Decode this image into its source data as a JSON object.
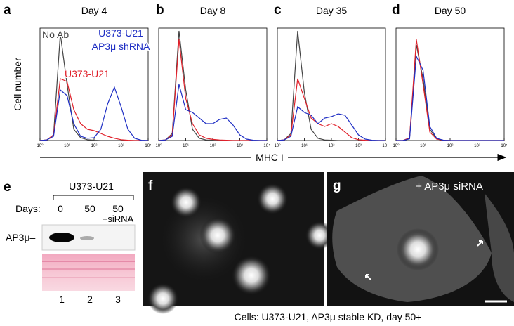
{
  "chart_data": [
    {
      "type": "line",
      "panel": "a",
      "title": "Day 4",
      "x": [
        0,
        0.25,
        0.5,
        0.75,
        1,
        1.25,
        1.5,
        1.75,
        2,
        2.25,
        2.5,
        2.75,
        3,
        3.25,
        3.5,
        3.75,
        4
      ],
      "xlim": [
        0,
        4
      ],
      "ylim": [
        0,
        400
      ],
      "xticks": [
        {
          "value": 0,
          "label": "10⁰"
        },
        {
          "value": 1,
          "label": "10¹"
        },
        {
          "value": 2,
          "label": "10²"
        },
        {
          "value": 3,
          "label": "10³"
        },
        {
          "value": 4,
          "label": "10⁴"
        }
      ],
      "series": [
        {
          "color": "#444444",
          "values": [
            0,
            2,
            20,
            380,
            200,
            40,
            10,
            3,
            1,
            0,
            0,
            0,
            0,
            0,
            0,
            0,
            0
          ]
        },
        {
          "color": "#e0202a",
          "values": [
            0,
            2,
            20,
            220,
            210,
            110,
            60,
            40,
            35,
            25,
            15,
            8,
            3,
            1,
            0,
            0,
            0
          ]
        },
        {
          "color": "#1f2fc4",
          "values": [
            0,
            2,
            15,
            180,
            160,
            60,
            15,
            8,
            10,
            40,
            130,
            190,
            120,
            40,
            8,
            1,
            0
          ]
        }
      ],
      "annotations": [
        {
          "text": "No Ab",
          "color": "#444444"
        },
        {
          "text": "U373-U21",
          "color": "#e0202a"
        },
        {
          "text": "U373-U21",
          "color": "#1f2fc4"
        },
        {
          "text": "AP3μ shRNA",
          "color": "#1f2fc4"
        }
      ]
    },
    {
      "type": "line",
      "panel": "b",
      "title": "Day 8",
      "x": [
        0,
        0.25,
        0.5,
        0.75,
        1,
        1.25,
        1.5,
        1.75,
        2,
        2.25,
        2.5,
        2.75,
        3,
        3.25,
        3.5,
        3.75,
        4
      ],
      "xlim": [
        0,
        4
      ],
      "ylim": [
        0,
        400
      ],
      "xticks": [
        {
          "value": 0,
          "label": "10⁰"
        },
        {
          "value": 1,
          "label": "10¹"
        },
        {
          "value": 2,
          "label": "10²"
        },
        {
          "value": 3,
          "label": "10³"
        },
        {
          "value": 4,
          "label": "10⁴"
        }
      ],
      "series": [
        {
          "color": "#444444",
          "values": [
            0,
            2,
            25,
            390,
            180,
            40,
            8,
            2,
            1,
            0,
            0,
            0,
            0,
            0,
            0,
            0,
            0
          ]
        },
        {
          "color": "#e0202a",
          "values": [
            0,
            2,
            20,
            360,
            150,
            60,
            20,
            8,
            4,
            2,
            1,
            0,
            0,
            0,
            0,
            0,
            0
          ]
        },
        {
          "color": "#1f2fc4",
          "values": [
            0,
            2,
            15,
            200,
            110,
            100,
            80,
            60,
            60,
            75,
            80,
            55,
            20,
            5,
            1,
            0,
            0
          ]
        }
      ]
    },
    {
      "type": "line",
      "panel": "c",
      "title": "Day 35",
      "x": [
        0,
        0.25,
        0.5,
        0.75,
        1,
        1.25,
        1.5,
        1.75,
        2,
        2.25,
        2.5,
        2.75,
        3,
        3.25,
        3.5,
        3.75,
        4
      ],
      "xlim": [
        0,
        4
      ],
      "ylim": [
        0,
        400
      ],
      "xticks": [
        {
          "value": 0,
          "label": "10⁰"
        },
        {
          "value": 1,
          "label": "10¹"
        },
        {
          "value": 2,
          "label": "10²"
        },
        {
          "value": 3,
          "label": "10³"
        },
        {
          "value": 4,
          "label": "10⁴"
        }
      ],
      "series": [
        {
          "color": "#444444",
          "values": [
            0,
            2,
            25,
            390,
            170,
            40,
            8,
            2,
            1,
            0,
            0,
            0,
            0,
            0,
            0,
            0,
            0
          ]
        },
        {
          "color": "#e0202a",
          "values": [
            0,
            2,
            20,
            220,
            150,
            80,
            60,
            50,
            60,
            50,
            30,
            10,
            3,
            1,
            0,
            0,
            0
          ]
        },
        {
          "color": "#1f2fc4",
          "values": [
            0,
            2,
            15,
            120,
            100,
            90,
            60,
            80,
            85,
            95,
            90,
            55,
            20,
            5,
            1,
            0,
            0
          ]
        }
      ]
    },
    {
      "type": "line",
      "panel": "d",
      "title": "Day 50",
      "x": [
        0,
        0.25,
        0.5,
        0.75,
        1,
        1.25,
        1.5,
        1.75,
        2,
        2.25,
        2.5,
        2.75,
        3,
        3.25,
        3.5,
        3.75,
        4
      ],
      "xlim": [
        0,
        4
      ],
      "ylim": [
        0,
        400
      ],
      "xticks": [
        {
          "value": 0,
          "label": "10⁰"
        },
        {
          "value": 1,
          "label": "10¹"
        },
        {
          "value": 2,
          "label": "10²"
        },
        {
          "value": 3,
          "label": "10³"
        },
        {
          "value": 4,
          "label": "10⁴"
        }
      ],
      "series": [
        {
          "color": "#444444",
          "values": [
            0,
            0,
            8,
            340,
            220,
            40,
            6,
            1,
            0,
            0,
            0,
            0,
            0,
            0,
            0,
            0,
            0
          ]
        },
        {
          "color": "#e0202a",
          "values": [
            0,
            0,
            10,
            360,
            200,
            30,
            5,
            1,
            0,
            0,
            0,
            0,
            0,
            0,
            0,
            0,
            0
          ]
        },
        {
          "color": "#1f2fc4",
          "values": [
            0,
            0,
            6,
            300,
            250,
            50,
            8,
            1,
            0,
            0,
            0,
            0,
            0,
            0,
            0,
            0,
            0
          ]
        }
      ]
    }
  ],
  "shared_axes": {
    "x_label": "MHC I",
    "y_label": "Cell number"
  },
  "panel_e": {
    "panel": "e",
    "cell_line": "U373-U21",
    "days_label": "Days:",
    "lanes": [
      {
        "day": "0",
        "number": "1"
      },
      {
        "day": "50",
        "number": "2"
      },
      {
        "day": "50",
        "treatment": "+siRNA",
        "number": "3"
      }
    ],
    "band_label": "AP3μ–"
  },
  "panel_f": {
    "panel": "f"
  },
  "panel_g": {
    "panel": "g",
    "treatment": "+ AP3μ siRNA"
  },
  "caption": "Cells: U373-U21, AP3μ stable KD, day 50+"
}
